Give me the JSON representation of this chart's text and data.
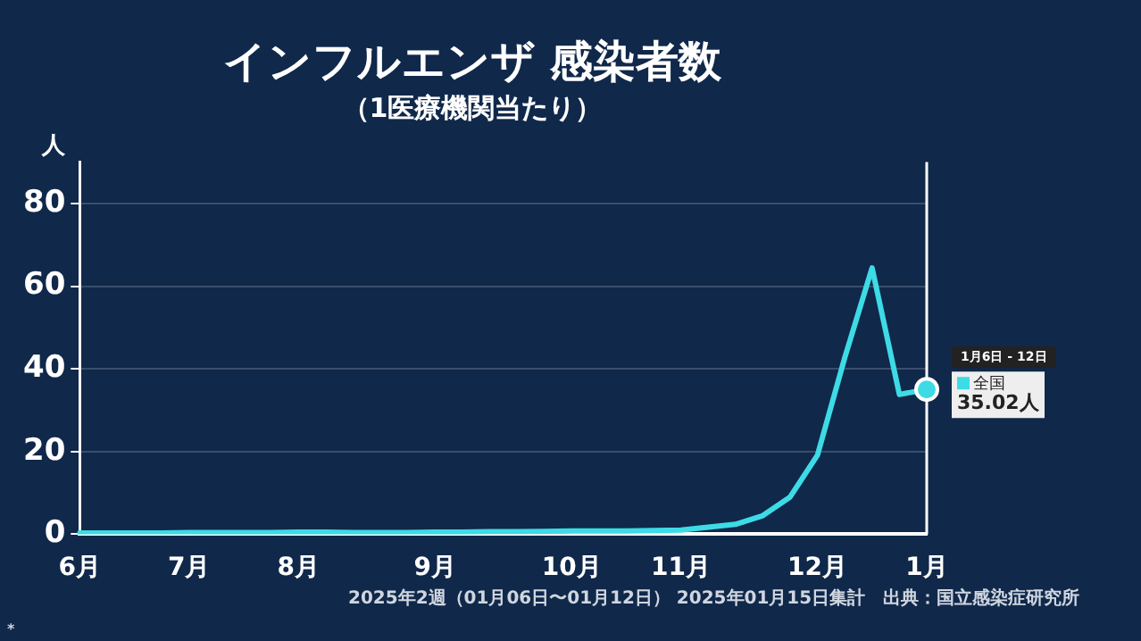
{
  "chart_data": {
    "type": "line",
    "title": "インフルエンザ 感染者数",
    "subtitle": "（1医療機関当たり）",
    "ylabel": "人",
    "categories": [
      "6月",
      null,
      null,
      null,
      "7月",
      null,
      null,
      null,
      "8月",
      null,
      null,
      null,
      null,
      "9月",
      null,
      null,
      null,
      null,
      "10月",
      null,
      null,
      null,
      "11月",
      null,
      null,
      null,
      null,
      "12月",
      null,
      null,
      null,
      "1月"
    ],
    "series": [
      {
        "name": "全国",
        "color": "#3ddbe6",
        "values": [
          0.3,
          0.3,
          0.3,
          0.3,
          0.4,
          0.4,
          0.4,
          0.4,
          0.5,
          0.5,
          0.4,
          0.4,
          0.4,
          0.5,
          0.5,
          0.6,
          0.6,
          0.7,
          0.8,
          0.8,
          0.8,
          0.9,
          1.0,
          1.7,
          2.4,
          4.5,
          9.0,
          19.1,
          42.7,
          64.4,
          33.8,
          35.02
        ],
        "value_labels": [
          null,
          null,
          null,
          null,
          null,
          null,
          null,
          null,
          null,
          null,
          null,
          null,
          null,
          null,
          null,
          null,
          null,
          null,
          null,
          null,
          null,
          null,
          null,
          null,
          null,
          null,
          null,
          null,
          null,
          null,
          null,
          "35.02人"
        ]
      }
    ],
    "ylim": [
      0,
      90
    ],
    "yticks": [
      0,
      20,
      40,
      60,
      80
    ],
    "grid": "y",
    "legend": "right",
    "marker": "none",
    "line_style": "solid",
    "annotations": [
      "1月6日 - 12日",
      "2025年2週（01月06日〜01月12日） 2025年01月15日集計　出典：国立感染症研究所",
      "*"
    ]
  }
}
